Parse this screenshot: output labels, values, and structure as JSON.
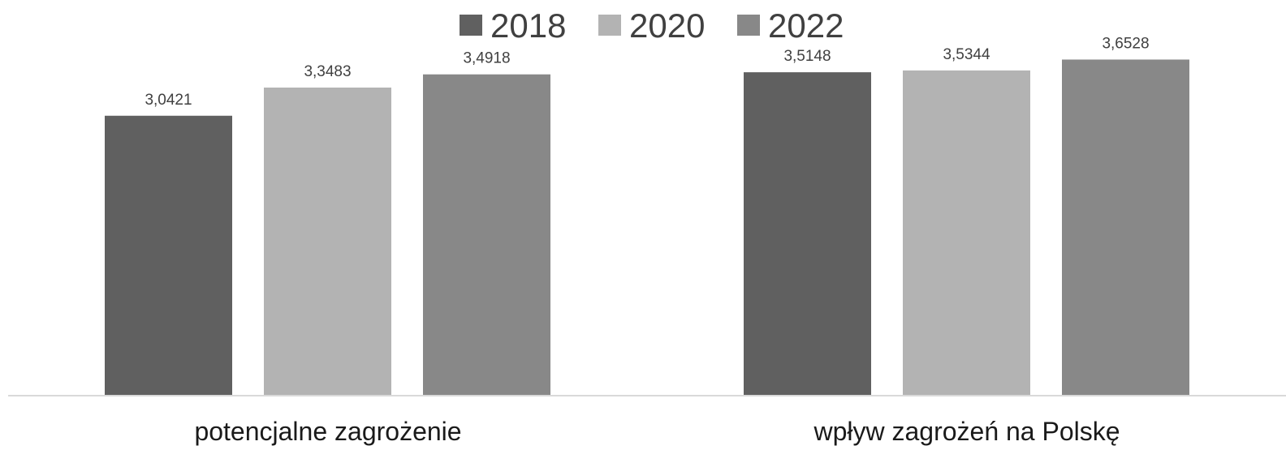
{
  "chart_data": {
    "type": "bar",
    "categories": [
      "potencjalne zagrożenie",
      "wpływ zagrożeń na Polskę"
    ],
    "series": [
      {
        "name": "2018",
        "values": [
          3.0421,
          3.5148
        ],
        "color": "#606060",
        "labels": [
          "3,0421",
          "3,5148"
        ]
      },
      {
        "name": "2020",
        "values": [
          3.3483,
          3.5344
        ],
        "color": "#b3b3b3",
        "labels": [
          "3,3483",
          "3,5344"
        ]
      },
      {
        "name": "2022",
        "values": [
          3.4918,
          3.6528
        ],
        "color": "#888888",
        "labels": [
          "3,4918",
          "3,6528"
        ]
      }
    ],
    "ylim": [
      0,
      4.3
    ],
    "grid": false,
    "legend_position": "top-center",
    "axis_line_color": "#d9d9d9"
  }
}
